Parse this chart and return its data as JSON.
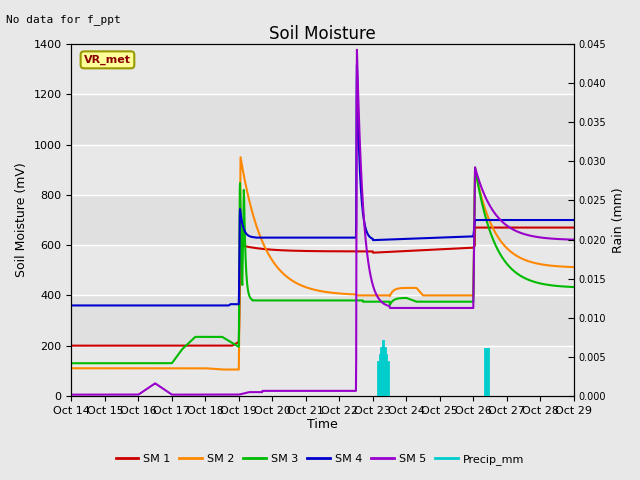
{
  "title": "Soil Moisture",
  "subtitle": "No data for f_ppt",
  "xlabel": "Time",
  "ylabel_left": "Soil Moisture (mV)",
  "ylabel_right": "Rain (mm)",
  "ylim_left": [
    0,
    1400
  ],
  "ylim_right": [
    0,
    0.045
  ],
  "yticks_left": [
    0,
    200,
    400,
    600,
    800,
    1000,
    1200,
    1400
  ],
  "yticks_right": [
    0.0,
    0.005,
    0.01,
    0.015,
    0.02,
    0.025,
    0.03,
    0.035,
    0.04,
    0.045
  ],
  "xtick_labels": [
    "Oct 14",
    "Oct 15",
    "Oct 16",
    "Oct 17",
    "Oct 18",
    "Oct 19",
    "Oct 20",
    "Oct 21",
    "Oct 22",
    "Oct 23",
    "Oct 24",
    "Oct 25",
    "Oct 26",
    "Oct 27",
    "Oct 28",
    "Oct 29"
  ],
  "colors": {
    "SM1": "#cc0000",
    "SM2": "#ff8800",
    "SM3": "#00bb00",
    "SM4": "#0000cc",
    "SM5": "#9900cc",
    "Precip": "#00cccc"
  },
  "legend_label": "VR_met",
  "fig_bg_color": "#e8e8e8",
  "plot_bg_color": "#e0e0e0",
  "band_color": "#d0d0d0",
  "grid_color": "#c0c0c0"
}
